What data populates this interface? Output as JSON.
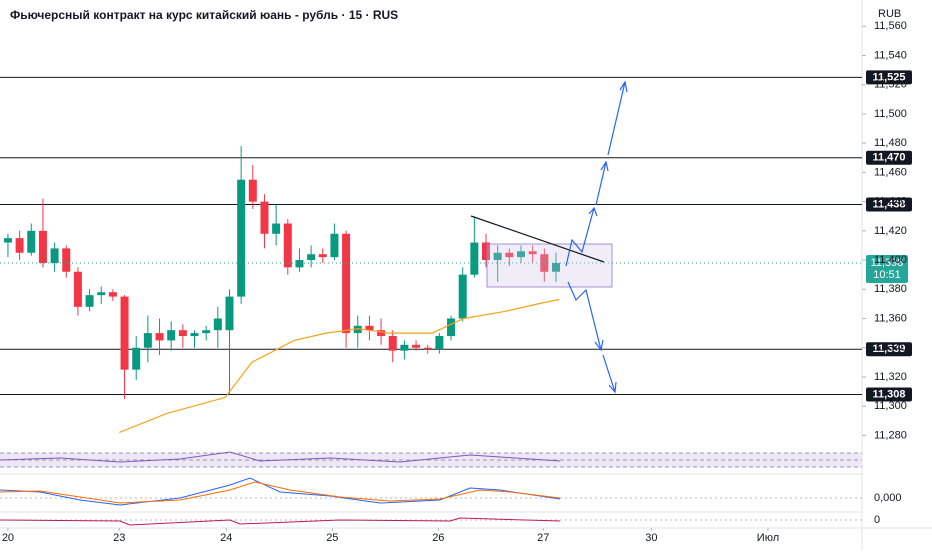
{
  "chart_data": {
    "type": "candlestick",
    "title": "Фьючерсный контракт на курс китайский юань - рубль · 15 · RUS",
    "currency": "RUB",
    "x": [
      0,
      0.11,
      0.22,
      0.33,
      0.44,
      0.55,
      0.66,
      0.77,
      0.88,
      0.99,
      1.1,
      1.21,
      1.32,
      1.43,
      1.54,
      1.65,
      1.76,
      1.87,
      1.98,
      2.09,
      2.2,
      2.31,
      2.42,
      2.53,
      2.64,
      2.75,
      2.86,
      2.97,
      3.08,
      3.19,
      3.3,
      3.41,
      3.52,
      3.63,
      3.74,
      3.85,
      3.96,
      4.07,
      4.18,
      4.29,
      4.4,
      4.51,
      4.62,
      4.73,
      4.84,
      4.95,
      5.06,
      5.17
    ],
    "open": [
      11412,
      11415,
      11405,
      11420,
      11398,
      11408,
      11392,
      11368,
      11376,
      11378,
      11375,
      11325,
      11340,
      11350,
      11345,
      11352,
      11348,
      11350,
      11352,
      11352,
      11375,
      11455,
      11440,
      11418,
      11425,
      11395,
      11400,
      11404,
      11402,
      11418,
      11350,
      11355,
      11352,
      11348,
      11338,
      11342,
      11340,
      11339,
      11348,
      11360,
      11390,
      11412,
      11400,
      11405,
      11402,
      11406,
      11404,
      11392
    ],
    "high": [
      11418,
      11420,
      11425,
      11442,
      11412,
      11410,
      11395,
      11380,
      11382,
      11380,
      11376,
      11348,
      11362,
      11360,
      11358,
      11356,
      11352,
      11355,
      11368,
      11380,
      11478,
      11465,
      11445,
      11438,
      11428,
      11408,
      11410,
      11408,
      11425,
      11420,
      11362,
      11362,
      11360,
      11352,
      11345,
      11345,
      11342,
      11350,
      11362,
      11395,
      11430,
      11418,
      11410,
      11408,
      11410,
      11410,
      11408,
      11405
    ],
    "low": [
      11402,
      11400,
      11403,
      11395,
      11392,
      11388,
      11362,
      11365,
      11370,
      11372,
      11305,
      11318,
      11330,
      11335,
      11338,
      11340,
      11340,
      11345,
      11340,
      11308,
      11370,
      11435,
      11408,
      11410,
      11390,
      11392,
      11395,
      11398,
      11400,
      11340,
      11340,
      11345,
      11342,
      11330,
      11332,
      11338,
      11336,
      11336,
      11345,
      11358,
      11388,
      11395,
      11385,
      11396,
      11398,
      11398,
      11385,
      11385
    ],
    "close": [
      11415,
      11405,
      11420,
      11398,
      11408,
      11392,
      11368,
      11376,
      11378,
      11375,
      11325,
      11340,
      11350,
      11345,
      11352,
      11348,
      11350,
      11352,
      11360,
      11375,
      11455,
      11440,
      11418,
      11425,
      11395,
      11400,
      11404,
      11402,
      11418,
      11350,
      11355,
      11352,
      11348,
      11338,
      11342,
      11340,
      11339,
      11348,
      11360,
      11390,
      11412,
      11400,
      11405,
      11402,
      11406,
      11404,
      11392,
      11398
    ],
    "up_color": "#089981",
    "down_color": "#f23645",
    "ma": {
      "color": "#f7a21b",
      "x": [
        1.05,
        1.5,
        2.05,
        2.3,
        2.7,
        3.0,
        3.3,
        3.6,
        4.0,
        4.3,
        4.7,
        5.0,
        5.2
      ],
      "values": [
        11282,
        11295,
        11306,
        11330,
        11345,
        11350,
        11353,
        11350,
        11350,
        11360,
        11365,
        11370,
        11373
      ]
    },
    "xlim": [
      -0.075,
      8.057
    ],
    "xticks": [
      {
        "value": 0,
        "label": "20"
      },
      {
        "value": 1.05,
        "label": "23"
      },
      {
        "value": 2.06,
        "label": "24"
      },
      {
        "value": 3.06,
        "label": "25"
      },
      {
        "value": 4.06,
        "label": "26"
      },
      {
        "value": 5.05,
        "label": "27"
      },
      {
        "value": 6.07,
        "label": "30"
      },
      {
        "value": 7.17,
        "label": "Июл"
      }
    ],
    "ylim": [
      11270,
      11578
    ],
    "yticks": [
      {
        "value": 11280,
        "label": "11,280"
      },
      {
        "value": 11300,
        "label": "11,300"
      },
      {
        "value": 11320,
        "label": "11,320"
      },
      {
        "value": 11340,
        "label": "11,340"
      },
      {
        "value": 11360,
        "label": "11,360"
      },
      {
        "value": 11380,
        "label": "11,380"
      },
      {
        "value": 11400,
        "label": "11,400"
      },
      {
        "value": 11420,
        "label": "11,420"
      },
      {
        "value": 11440,
        "label": "11,440"
      },
      {
        "value": 11460,
        "label": "11,460"
      },
      {
        "value": 11480,
        "label": "11,480"
      },
      {
        "value": 11500,
        "label": "11,500"
      },
      {
        "value": 11520,
        "label": "11,520"
      },
      {
        "value": 11540,
        "label": "11,540"
      },
      {
        "value": 11560,
        "label": "11,560"
      }
    ],
    "levels": [
      {
        "value": 11525,
        "label": "11,525"
      },
      {
        "value": 11470,
        "label": "11,470"
      },
      {
        "value": 11438,
        "label": "11,438"
      },
      {
        "value": 11339,
        "label": "11,339"
      },
      {
        "value": 11308,
        "label": "11,308"
      }
    ],
    "last_price": {
      "value": 11398,
      "label": "11,398",
      "time": "10:51",
      "color": "#26a69a"
    },
    "indicator_labels": [
      "0,000",
      "0"
    ]
  }
}
